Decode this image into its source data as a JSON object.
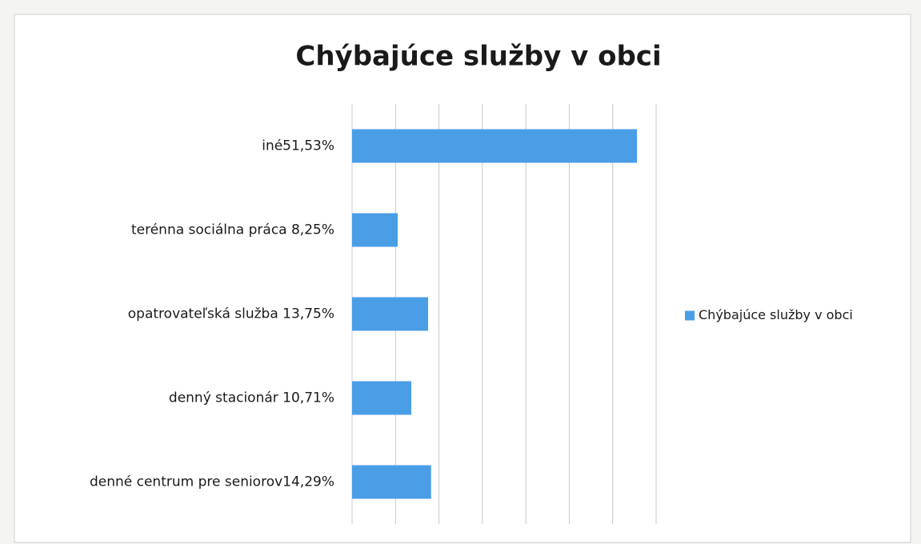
{
  "chart_data": {
    "type": "hbar",
    "title": "Chýbajúce služby v obci",
    "categories": [
      "iné51,53%",
      "terénna sociálna práca 8,25%",
      "opatrovateľská služba 13,75%",
      "denný stacionár 10,71%",
      "denné centrum pre seniorov14,29%"
    ],
    "series": [
      {
        "name": "Chýbajúce služby v obci",
        "color": "#4a9ee6",
        "values": [
          51.53,
          8.25,
          13.75,
          10.71,
          14.29
        ]
      }
    ],
    "xlim": [
      0,
      55
    ],
    "grid": true,
    "legend": "right"
  }
}
